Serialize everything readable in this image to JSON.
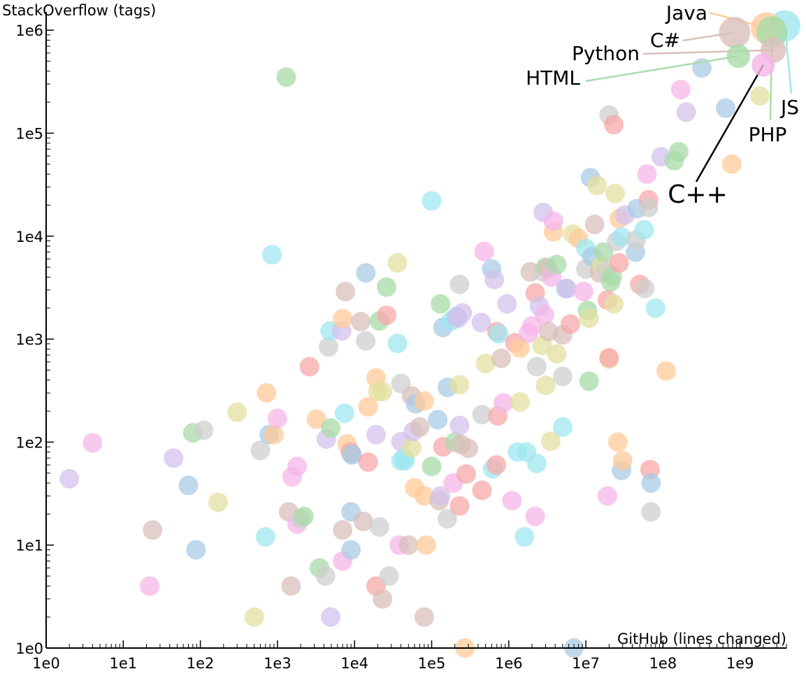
{
  "chart_data": {
    "type": "scatter",
    "title": "",
    "xlabel": "GitHub (lines changed)",
    "ylabel": "StackOverflow (tags)",
    "xscale": "log",
    "yscale": "log",
    "xlim": [
      1,
      4000000000
    ],
    "ylim": [
      1,
      1500000
    ],
    "x_ticks": [
      {
        "value": 1,
        "label": "1e0"
      },
      {
        "value": 10,
        "label": "1e1"
      },
      {
        "value": 100,
        "label": "1e2"
      },
      {
        "value": 1000,
        "label": "1e3"
      },
      {
        "value": 10000,
        "label": "1e4"
      },
      {
        "value": 100000,
        "label": "1e5"
      },
      {
        "value": 1000000,
        "label": "1e6"
      },
      {
        "value": 10000000,
        "label": "1e7"
      },
      {
        "value": 100000000,
        "label": "1e8"
      },
      {
        "value": 1000000000,
        "label": "1e9"
      }
    ],
    "y_ticks": [
      {
        "value": 1,
        "label": "1e0"
      },
      {
        "value": 10,
        "label": "1e1"
      },
      {
        "value": 100,
        "label": "1e2"
      },
      {
        "value": 1000,
        "label": "1e3"
      },
      {
        "value": 10000,
        "label": "1e4"
      },
      {
        "value": 100000,
        "label": "1e5"
      },
      {
        "value": 1000000,
        "label": "1e6"
      }
    ],
    "colors": [
      "#f7a8a8",
      "#ffcb99",
      "#e3e0a0",
      "#a8dba8",
      "#9fe7ef",
      "#a9cbe6",
      "#d3c1ec",
      "#f5b5e8",
      "#d9bfbb",
      "#cfcfcf"
    ],
    "labeled_points": [
      {
        "name": "JS",
        "x": 3800000000,
        "y": 1100000,
        "color": "#9fe7ef",
        "size": 1.6
      },
      {
        "name": "Java",
        "x": 2200000000,
        "y": 1050000,
        "color": "#ffcb99",
        "size": 1.6
      },
      {
        "name": "C#",
        "x": 850000000,
        "y": 950000,
        "color": "#d9bfbb",
        "size": 1.6
      },
      {
        "name": "PHP",
        "x": 2600000000,
        "y": 960000,
        "color": "#a8dba8",
        "size": 1.6
      },
      {
        "name": "Python",
        "x": 2700000000,
        "y": 640000,
        "color": "#d9bfbb",
        "size": 1.3
      },
      {
        "name": "HTML",
        "x": 950000000,
        "y": 560000,
        "color": "#a8dba8",
        "size": 1.2
      },
      {
        "name": "C++",
        "x": 2000000000,
        "y": 460000,
        "color": "#f5b5e8",
        "size": 1.2
      }
    ],
    "labels": [
      {
        "name": "Java",
        "text": "Java",
        "fontsize": 28
      },
      {
        "name": "C#",
        "text": "C#",
        "fontsize": 28
      },
      {
        "name": "Python",
        "text": "Python",
        "fontsize": 28
      },
      {
        "name": "HTML",
        "text": "HTML",
        "fontsize": 28
      },
      {
        "name": "JS",
        "text": "JS",
        "fontsize": 28
      },
      {
        "name": "PHP",
        "text": "PHP",
        "fontsize": 28
      },
      {
        "name": "C++",
        "text": "C++",
        "fontsize": 36
      }
    ],
    "points": [
      [
        2,
        44,
        6
      ],
      [
        4,
        98,
        7
      ],
      [
        22,
        4,
        7
      ],
      [
        24,
        14,
        8
      ],
      [
        45,
        70,
        6
      ],
      [
        70,
        38,
        5
      ],
      [
        80,
        123,
        3
      ],
      [
        88,
        9,
        5
      ],
      [
        110,
        130,
        9
      ],
      [
        170,
        26,
        2
      ],
      [
        300,
        195,
        2
      ],
      [
        500,
        2,
        2
      ],
      [
        600,
        83,
        9
      ],
      [
        700,
        12,
        4
      ],
      [
        720,
        300,
        1
      ],
      [
        780,
        118,
        5
      ],
      [
        850,
        6600,
        4
      ],
      [
        900,
        118,
        1
      ],
      [
        1000,
        170,
        7
      ],
      [
        1300,
        350000,
        3
      ],
      [
        1400,
        21,
        8
      ],
      [
        1500,
        4,
        8
      ],
      [
        1550,
        46,
        7
      ],
      [
        1800,
        58,
        7
      ],
      [
        1800,
        16,
        7
      ],
      [
        2000,
        18,
        9
      ],
      [
        2200,
        19,
        3
      ],
      [
        2600,
        540,
        0
      ],
      [
        3200,
        167,
        1
      ],
      [
        3500,
        6,
        3
      ],
      [
        4200,
        5,
        9
      ],
      [
        4300,
        107,
        6
      ],
      [
        4600,
        840,
        9
      ],
      [
        4800,
        1200,
        4
      ],
      [
        4900,
        2,
        6
      ],
      [
        4900,
        137,
        3
      ],
      [
        6800,
        1200,
        6
      ],
      [
        7000,
        1580,
        1
      ],
      [
        7000,
        14,
        8
      ],
      [
        7000,
        7,
        7
      ],
      [
        7400,
        191,
        4
      ],
      [
        7600,
        2900,
        8
      ],
      [
        8000,
        96,
        1
      ],
      [
        8800,
        80,
        0
      ],
      [
        9000,
        78,
        8
      ],
      [
        9300,
        75,
        5
      ],
      [
        9000,
        21,
        5
      ],
      [
        9000,
        9,
        5
      ],
      [
        12000,
        1480,
        8
      ],
      [
        13000,
        17,
        8
      ],
      [
        14000,
        4400,
        5
      ],
      [
        14000,
        960,
        9
      ],
      [
        15000,
        64,
        0
      ],
      [
        15000,
        220,
        1
      ],
      [
        19000,
        4,
        0
      ],
      [
        19000,
        118,
        6
      ],
      [
        19000,
        420,
        1
      ],
      [
        20000,
        310,
        2
      ],
      [
        21000,
        15,
        9
      ],
      [
        21000,
        1500,
        3
      ],
      [
        23000,
        310,
        2
      ],
      [
        23000,
        3,
        8
      ],
      [
        26000,
        1700,
        0
      ],
      [
        26000,
        3200,
        3
      ],
      [
        28000,
        5,
        9
      ],
      [
        36000,
        5500,
        2
      ],
      [
        36000,
        910,
        4
      ],
      [
        38000,
        10,
        7
      ],
      [
        40000,
        66,
        4
      ],
      [
        40000,
        101,
        6
      ],
      [
        40000,
        370,
        9
      ],
      [
        44000,
        70,
        4
      ],
      [
        45000,
        66,
        4
      ],
      [
        50000,
        10,
        8
      ],
      [
        55000,
        88,
        2
      ],
      [
        55000,
        280,
        8
      ],
      [
        58000,
        127,
        6
      ],
      [
        60000,
        36,
        1
      ],
      [
        62000,
        235,
        5
      ],
      [
        70000,
        140,
        8
      ],
      [
        80000,
        30,
        1
      ],
      [
        80000,
        250,
        1
      ],
      [
        80000,
        2,
        8
      ],
      [
        85000,
        10,
        1
      ],
      [
        100000,
        58,
        3
      ],
      [
        100000,
        22000,
        4
      ],
      [
        120000,
        165,
        5
      ],
      [
        125000,
        27,
        8
      ],
      [
        130000,
        30,
        6
      ],
      [
        130000,
        2200,
        3
      ],
      [
        140000,
        90,
        0
      ],
      [
        140000,
        1300,
        5
      ],
      [
        160000,
        18,
        9
      ],
      [
        160000,
        340,
        5
      ],
      [
        180000,
        1500,
        4
      ],
      [
        190000,
        40,
        7
      ],
      [
        200000,
        100,
        3
      ],
      [
        210000,
        1650,
        5
      ],
      [
        220000,
        1600,
        6
      ],
      [
        230000,
        3400,
        9
      ],
      [
        230000,
        360,
        2
      ],
      [
        230000,
        145,
        6
      ],
      [
        230000,
        24,
        0
      ],
      [
        240000,
        95,
        8
      ],
      [
        250000,
        1800,
        6
      ],
      [
        270000,
        1,
        1
      ],
      [
        280000,
        49,
        0
      ],
      [
        300000,
        87,
        8
      ],
      [
        440000,
        1450,
        6
      ],
      [
        450000,
        34,
        0
      ],
      [
        450000,
        185,
        9
      ],
      [
        480000,
        7100,
        7
      ],
      [
        500000,
        580,
        2
      ],
      [
        600000,
        4800,
        5
      ],
      [
        620000,
        55,
        4
      ],
      [
        650000,
        3800,
        6
      ],
      [
        690000,
        60,
        0
      ],
      [
        700000,
        1180,
        0
      ],
      [
        720000,
        180,
        0
      ],
      [
        740000,
        1130,
        4
      ],
      [
        800000,
        650,
        8
      ],
      [
        850000,
        240,
        7
      ],
      [
        950000,
        2200,
        6
      ],
      [
        1100000,
        27,
        7
      ],
      [
        1200000,
        920,
        0
      ],
      [
        1300000,
        80,
        4
      ],
      [
        1400000,
        820,
        1
      ],
      [
        1400000,
        245,
        2
      ],
      [
        1600000,
        12,
        4
      ],
      [
        1700000,
        80,
        4
      ],
      [
        1800000,
        1140,
        7
      ],
      [
        1900000,
        4500,
        8
      ],
      [
        2000000,
        1340,
        7
      ],
      [
        2200000,
        2800,
        0
      ],
      [
        2200000,
        19,
        7
      ],
      [
        2300000,
        540,
        9
      ],
      [
        2300000,
        62,
        4
      ],
      [
        2500000,
        2100,
        6
      ],
      [
        2700000,
        870,
        2
      ],
      [
        2800000,
        17000,
        6
      ],
      [
        2800000,
        4500,
        9
      ],
      [
        2900000,
        1720,
        7
      ],
      [
        3000000,
        5000,
        3
      ],
      [
        3000000,
        355,
        2
      ],
      [
        3200000,
        4900,
        8
      ],
      [
        3300000,
        1180,
        8
      ],
      [
        3500000,
        102,
        2
      ],
      [
        3600000,
        4000,
        7
      ],
      [
        3800000,
        11000,
        1
      ],
      [
        3800000,
        14000,
        7
      ],
      [
        4200000,
        720,
        2
      ],
      [
        4200000,
        5300,
        3
      ],
      [
        5000000,
        1100,
        8
      ],
      [
        5000000,
        140,
        4
      ],
      [
        5000000,
        435,
        9
      ],
      [
        5500000,
        3100,
        5
      ],
      [
        5700000,
        3100,
        6
      ],
      [
        6300000,
        1400,
        0
      ],
      [
        6800000,
        10500,
        2
      ],
      [
        7000000,
        1,
        5
      ],
      [
        8000000,
        9500,
        1
      ],
      [
        9300000,
        2900,
        7
      ],
      [
        10000000,
        7600,
        4
      ],
      [
        10000000,
        4800,
        9
      ],
      [
        10500000,
        1900,
        3
      ],
      [
        11000000,
        1600,
        2
      ],
      [
        11000000,
        390,
        3
      ],
      [
        11500000,
        37000,
        5
      ],
      [
        12000000,
        6300,
        5
      ],
      [
        13000000,
        13000,
        8
      ],
      [
        14000000,
        31000,
        2
      ],
      [
        15000000,
        4400,
        8
      ],
      [
        16000000,
        5200,
        2
      ],
      [
        17000000,
        7000,
        3
      ],
      [
        18000000,
        4600,
        9
      ],
      [
        19000000,
        2400,
        0
      ],
      [
        19000000,
        30,
        7
      ],
      [
        20000000,
        150000,
        9
      ],
      [
        20000000,
        640,
        2
      ],
      [
        20000000,
        660,
        0
      ],
      [
        21000000,
        3600,
        3
      ],
      [
        22000000,
        4100,
        3
      ],
      [
        23000000,
        2200,
        2
      ],
      [
        23000000,
        121000,
        0
      ],
      [
        24000000,
        26000,
        2
      ],
      [
        25000000,
        8900,
        9
      ],
      [
        26000000,
        100,
        1
      ],
      [
        27000000,
        5500,
        0
      ],
      [
        27000000,
        14800,
        1
      ],
      [
        29000000,
        9800,
        4
      ],
      [
        29000000,
        53,
        5
      ],
      [
        30000000,
        66,
        1
      ],
      [
        32000000,
        16000,
        6
      ],
      [
        44000000,
        7000,
        5
      ],
      [
        45000000,
        9200,
        9
      ],
      [
        46000000,
        18500,
        5
      ],
      [
        50000000,
        3400,
        0
      ],
      [
        57000000,
        11500,
        4
      ],
      [
        58000000,
        3100,
        9
      ],
      [
        62000000,
        40000,
        7
      ],
      [
        65000000,
        22500,
        0
      ],
      [
        65000000,
        19000,
        9
      ],
      [
        68000000,
        54,
        0
      ],
      [
        70000000,
        40,
        5
      ],
      [
        70000000,
        21,
        9
      ],
      [
        80000000,
        2000,
        4
      ],
      [
        95000000,
        59000,
        6
      ],
      [
        110000000,
        490,
        1
      ],
      [
        140000000,
        54000,
        3
      ],
      [
        160000000,
        66000,
        3
      ],
      [
        170000000,
        265000,
        7
      ],
      [
        200000000,
        160000,
        6
      ],
      [
        320000000,
        430000,
        5
      ],
      [
        650000000,
        175000,
        5
      ],
      [
        780000000,
        50000,
        1
      ],
      [
        1800000000,
        230000,
        2
      ]
    ]
  }
}
